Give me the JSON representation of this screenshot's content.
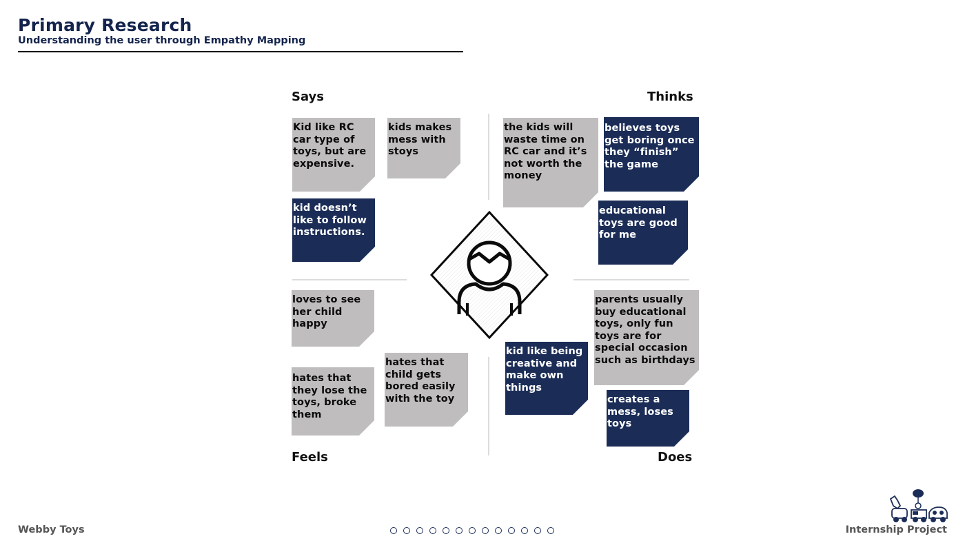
{
  "header": {
    "title": "Primary Research",
    "subtitle": "Understanding the user through Empathy Mapping"
  },
  "quadrants": {
    "says": "Says",
    "thinks": "Thinks",
    "feels": "Feels",
    "does": "Does"
  },
  "notes": {
    "says": [
      {
        "text": "Kid like RC car type of toys, but are expensive.",
        "color": "gray"
      },
      {
        "text": "kids makes mess with stoys",
        "color": "gray"
      },
      {
        "text": "kid doesn’t like to follow instructions.",
        "color": "navy"
      }
    ],
    "thinks": [
      {
        "text": "the kids will waste time on RC car and it’s not worth the money",
        "color": "gray"
      },
      {
        "text": "believes toys get boring once they “finish” the game",
        "color": "navy"
      },
      {
        "text": "educational toys are good for me",
        "color": "navy"
      }
    ],
    "feels": [
      {
        "text": "loves to see her child happy",
        "color": "gray"
      },
      {
        "text": "hates that they lose the toys, broke them",
        "color": "gray"
      },
      {
        "text": "hates that child gets bored easily with the toy",
        "color": "gray"
      }
    ],
    "does": [
      {
        "text": "parents usually buy educational toys, only fun toys are for special occasion such as birthdays",
        "color": "gray"
      },
      {
        "text": "kid like being creative and make own things",
        "color": "navy"
      },
      {
        "text": "creates a mess, loses toys",
        "color": "navy"
      }
    ]
  },
  "center_icon": "user-avatar-icon",
  "footer": {
    "brand": "Webby Toys",
    "project": "Internship Project",
    "logo_icon": "toy-train-logo-icon",
    "page_count": 13
  },
  "colors": {
    "navy": "#1b2d57",
    "title_navy": "#14244d",
    "note_gray": "#bfbdbe",
    "divider": "#dcdcdc"
  }
}
